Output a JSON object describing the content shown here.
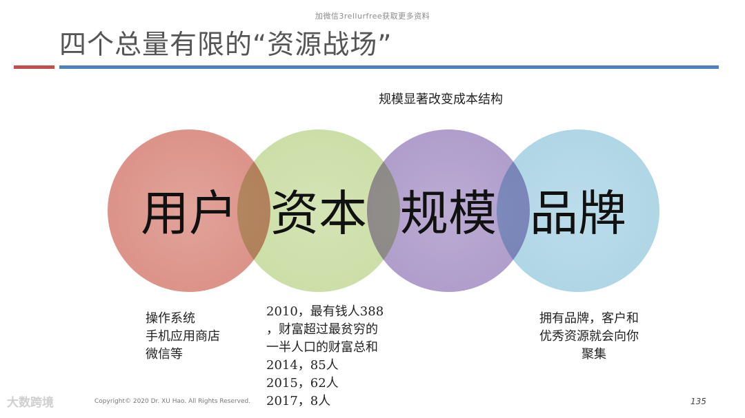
{
  "watermark_top": "加微信3rellurfree获取更多资料",
  "title": "四个总量有限的“资源战场”",
  "colors": {
    "rule_red": "#c0504d",
    "rule_blue": "#4f81bd",
    "circle_user": "#d98a7f",
    "circle_capital": "#c8dca1",
    "circle_scale": "#a995c7",
    "circle_brand": "#a9d3e4"
  },
  "annotation": "规模显著改变成本结构",
  "circles": [
    {
      "label": "用户"
    },
    {
      "label": "资本"
    },
    {
      "label": "规模"
    },
    {
      "label": "品牌"
    }
  ],
  "notes": {
    "user": [
      "操作系统",
      "手机应用商店",
      "微信等"
    ],
    "capital": [
      "2010，最有钱人388",
      "，财富超过最贫穷的",
      "一半人口的财富总和",
      "2014，85人",
      "2015，62人",
      "2017，8人"
    ],
    "brand": [
      "拥有品牌，客户和",
      "优秀资源就会向你",
      "聚集"
    ]
  },
  "footer": {
    "logo_text": "大数跨境",
    "copyright": "Copyright© 2020 Dr. XU Hao. All Rights Reserved.",
    "page_number": "135"
  }
}
